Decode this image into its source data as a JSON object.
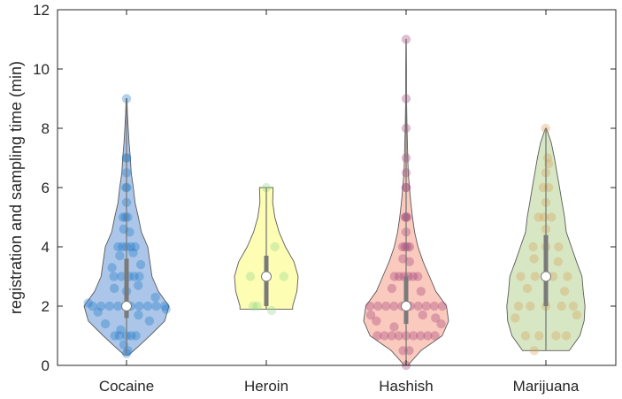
{
  "chart_data": {
    "type": "violin",
    "title": "",
    "xlabel": "",
    "ylabel": "registration and sampling time (min)",
    "ylim": [
      0,
      12
    ],
    "yticks": [
      0,
      2,
      4,
      6,
      8,
      10,
      12
    ],
    "grid": false,
    "categories": [
      "Cocaine",
      "Heroin",
      "Hashish",
      "Marijuana"
    ],
    "series": [
      {
        "category": "Cocaine",
        "fill": "#8fb3e0",
        "point_color": "#1f78c8",
        "median": 2.0,
        "q1": 1.6,
        "q3": 3.6,
        "whisker_low": 0.4,
        "whisker_high": 9.0,
        "density_profile": [
          [
            0.35,
            0.05
          ],
          [
            0.6,
            0.25
          ],
          [
            1.0,
            0.55
          ],
          [
            1.5,
            0.9
          ],
          [
            2.0,
            1.0
          ],
          [
            2.5,
            0.75
          ],
          [
            3.0,
            0.6
          ],
          [
            3.5,
            0.55
          ],
          [
            4.0,
            0.5
          ],
          [
            4.5,
            0.35
          ],
          [
            5.0,
            0.28
          ],
          [
            5.5,
            0.2
          ],
          [
            6.0,
            0.16
          ],
          [
            6.5,
            0.11
          ],
          [
            7.0,
            0.09
          ],
          [
            7.5,
            0.06
          ],
          [
            8.0,
            0.04
          ],
          [
            8.5,
            0.02
          ],
          [
            9.0,
            0.01
          ]
        ],
        "points": [
          [
            -0.6,
            2.0
          ],
          [
            -0.4,
            2.0
          ],
          [
            -0.2,
            2.0
          ],
          [
            0.1,
            2.0
          ],
          [
            0.3,
            2.0
          ],
          [
            0.5,
            2.0
          ],
          [
            0.7,
            2.0
          ],
          [
            0.9,
            2.0
          ],
          [
            -0.8,
            2.0
          ],
          [
            -0.95,
            2.1
          ],
          [
            0.95,
            1.9
          ],
          [
            -0.5,
            1.0
          ],
          [
            -0.3,
            1.0
          ],
          [
            0.0,
            1.0
          ],
          [
            0.2,
            1.0
          ],
          [
            0.4,
            1.0
          ],
          [
            -0.6,
            1.4
          ],
          [
            0.6,
            1.5
          ],
          [
            -0.2,
            1.2
          ],
          [
            0.3,
            1.7
          ],
          [
            -0.7,
            1.8
          ],
          [
            0.8,
            2.3
          ],
          [
            -0.5,
            3.0
          ],
          [
            -0.2,
            3.0
          ],
          [
            0.1,
            3.0
          ],
          [
            0.3,
            3.0
          ],
          [
            0.5,
            3.0
          ],
          [
            -0.4,
            2.6
          ],
          [
            0.4,
            2.7
          ],
          [
            -0.6,
            3.3
          ],
          [
            0.6,
            3.4
          ],
          [
            0.0,
            2.5
          ],
          [
            -0.4,
            4.0
          ],
          [
            -0.2,
            4.0
          ],
          [
            0.0,
            4.0
          ],
          [
            0.2,
            4.0
          ],
          [
            0.4,
            4.0
          ],
          [
            -0.3,
            3.7
          ],
          [
            0.3,
            3.8
          ],
          [
            -0.3,
            5.0
          ],
          [
            -0.1,
            5.0
          ],
          [
            0.1,
            5.0
          ],
          [
            -0.2,
            4.6
          ],
          [
            0.2,
            4.5
          ],
          [
            -0.1,
            6.0
          ],
          [
            0.05,
            6.0
          ],
          [
            0.0,
            5.5
          ],
          [
            -0.05,
            7.0
          ],
          [
            0.05,
            7.0
          ],
          [
            0.0,
            6.5
          ],
          [
            0.0,
            9.0
          ],
          [
            0.0,
            0.4
          ],
          [
            0.2,
            0.5
          ],
          [
            -0.2,
            0.7
          ]
        ]
      },
      {
        "category": "Heroin",
        "fill": "#fcfc9a",
        "point_color": "#8fd88f",
        "median": 3.0,
        "q1": 2.0,
        "q3": 3.7,
        "whisker_low": 1.9,
        "whisker_high": 6.0,
        "density_profile": [
          [
            1.9,
            0.62
          ],
          [
            2.0,
            0.62
          ],
          [
            2.5,
            0.72
          ],
          [
            3.0,
            0.75
          ],
          [
            3.5,
            0.65
          ],
          [
            4.0,
            0.45
          ],
          [
            4.5,
            0.3
          ],
          [
            5.0,
            0.2
          ],
          [
            5.5,
            0.15
          ],
          [
            6.0,
            0.16
          ]
        ],
        "points": [
          [
            -0.5,
            2.0
          ],
          [
            -0.35,
            2.0
          ],
          [
            0.2,
            1.85
          ],
          [
            0.0,
            6.0
          ],
          [
            0.45,
            4.0
          ],
          [
            0.55,
            3.0
          ],
          [
            -0.5,
            3.0
          ]
        ]
      },
      {
        "category": "Hashish",
        "fill": "#f8b8a8",
        "point_color": "#a2427a",
        "median": 2.0,
        "q1": 1.4,
        "q3": 3.0,
        "whisker_low": 0.0,
        "whisker_high": 11.0,
        "density_profile": [
          [
            0.0,
            0.04
          ],
          [
            0.5,
            0.35
          ],
          [
            1.0,
            0.85
          ],
          [
            1.5,
            1.0
          ],
          [
            2.0,
            0.95
          ],
          [
            2.5,
            0.7
          ],
          [
            3.0,
            0.55
          ],
          [
            3.5,
            0.4
          ],
          [
            4.0,
            0.28
          ],
          [
            4.5,
            0.2
          ],
          [
            5.0,
            0.15
          ],
          [
            5.5,
            0.11
          ],
          [
            6.0,
            0.08
          ],
          [
            6.5,
            0.05
          ],
          [
            7.0,
            0.04
          ],
          [
            8.0,
            0.02
          ],
          [
            9.0,
            0.01
          ],
          [
            10.0,
            0.01
          ],
          [
            11.0,
            0.005
          ]
        ],
        "points": [
          [
            -0.9,
            2.0
          ],
          [
            -0.7,
            2.0
          ],
          [
            -0.5,
            2.0
          ],
          [
            -0.3,
            2.0
          ],
          [
            -0.1,
            2.0
          ],
          [
            0.1,
            2.0
          ],
          [
            0.3,
            2.0
          ],
          [
            0.5,
            2.0
          ],
          [
            0.7,
            2.0
          ],
          [
            0.9,
            2.0
          ],
          [
            -0.8,
            1.0
          ],
          [
            -0.6,
            1.0
          ],
          [
            -0.4,
            1.0
          ],
          [
            -0.2,
            1.0
          ],
          [
            0.0,
            1.0
          ],
          [
            0.2,
            1.0
          ],
          [
            0.4,
            1.0
          ],
          [
            0.6,
            1.0
          ],
          [
            0.8,
            1.0
          ],
          [
            -0.7,
            1.5
          ],
          [
            0.7,
            1.6
          ],
          [
            -0.3,
            1.3
          ],
          [
            0.4,
            1.7
          ],
          [
            -0.85,
            1.7
          ],
          [
            0.85,
            1.4
          ],
          [
            -0.5,
            3.0
          ],
          [
            -0.3,
            3.0
          ],
          [
            -0.1,
            3.0
          ],
          [
            0.1,
            3.0
          ],
          [
            0.3,
            3.0
          ],
          [
            0.5,
            3.0
          ],
          [
            -0.5,
            2.6
          ],
          [
            0.5,
            2.5
          ],
          [
            -0.3,
            4.0
          ],
          [
            -0.1,
            4.0
          ],
          [
            0.1,
            4.0
          ],
          [
            0.3,
            4.0
          ],
          [
            -0.2,
            3.6
          ],
          [
            0.2,
            3.5
          ],
          [
            -0.15,
            5.0
          ],
          [
            0.0,
            5.0
          ],
          [
            0.15,
            5.0
          ],
          [
            0.0,
            4.5
          ],
          [
            -0.05,
            6.0
          ],
          [
            0.05,
            6.0
          ],
          [
            0.0,
            6.5
          ],
          [
            0.0,
            7.0
          ],
          [
            0.0,
            8.0
          ],
          [
            0.0,
            9.0
          ],
          [
            0.0,
            11.0
          ],
          [
            0.0,
            0.0
          ],
          [
            -0.2,
            0.5
          ],
          [
            0.2,
            0.5
          ]
        ]
      },
      {
        "category": "Marijuana",
        "fill": "#c9dfb0",
        "point_color": "#d7a05a",
        "median": 3.0,
        "q1": 2.0,
        "q3": 4.4,
        "whisker_low": 0.5,
        "whisker_high": 8.0,
        "density_profile": [
          [
            0.5,
            0.55
          ],
          [
            1.0,
            0.8
          ],
          [
            1.5,
            0.9
          ],
          [
            2.0,
            0.92
          ],
          [
            2.5,
            0.88
          ],
          [
            3.0,
            0.85
          ],
          [
            3.5,
            0.72
          ],
          [
            4.0,
            0.6
          ],
          [
            4.5,
            0.48
          ],
          [
            5.0,
            0.44
          ],
          [
            5.5,
            0.38
          ],
          [
            6.0,
            0.32
          ],
          [
            6.5,
            0.26
          ],
          [
            7.0,
            0.2
          ],
          [
            7.5,
            0.13
          ],
          [
            8.0,
            0.01
          ]
        ],
        "points": [
          [
            -0.7,
            2.0
          ],
          [
            -0.4,
            2.0
          ],
          [
            0.0,
            2.0
          ],
          [
            0.4,
            2.0
          ],
          [
            0.7,
            2.0
          ],
          [
            -0.8,
            1.6
          ],
          [
            0.8,
            1.7
          ],
          [
            -0.6,
            1.0
          ],
          [
            -0.2,
            1.0
          ],
          [
            0.3,
            1.0
          ],
          [
            0.6,
            1.0
          ],
          [
            -0.5,
            0.5
          ],
          [
            -0.7,
            3.0
          ],
          [
            -0.3,
            3.0
          ],
          [
            0.2,
            3.0
          ],
          [
            0.6,
            3.0
          ],
          [
            -0.5,
            2.6
          ],
          [
            0.5,
            2.5
          ],
          [
            -0.5,
            4.0
          ],
          [
            0.0,
            4.0
          ],
          [
            0.5,
            4.0
          ],
          [
            -0.4,
            3.6
          ],
          [
            0.4,
            3.5
          ],
          [
            -0.4,
            5.0
          ],
          [
            -0.1,
            5.0
          ],
          [
            0.3,
            5.0
          ],
          [
            0.0,
            4.6
          ],
          [
            -0.2,
            6.0
          ],
          [
            0.2,
            6.0
          ],
          [
            0.0,
            5.5
          ],
          [
            0.2,
            7.0
          ],
          [
            0.0,
            6.5
          ],
          [
            -0.1,
            8.0
          ],
          [
            0.3,
            6.8
          ]
        ]
      }
    ]
  }
}
